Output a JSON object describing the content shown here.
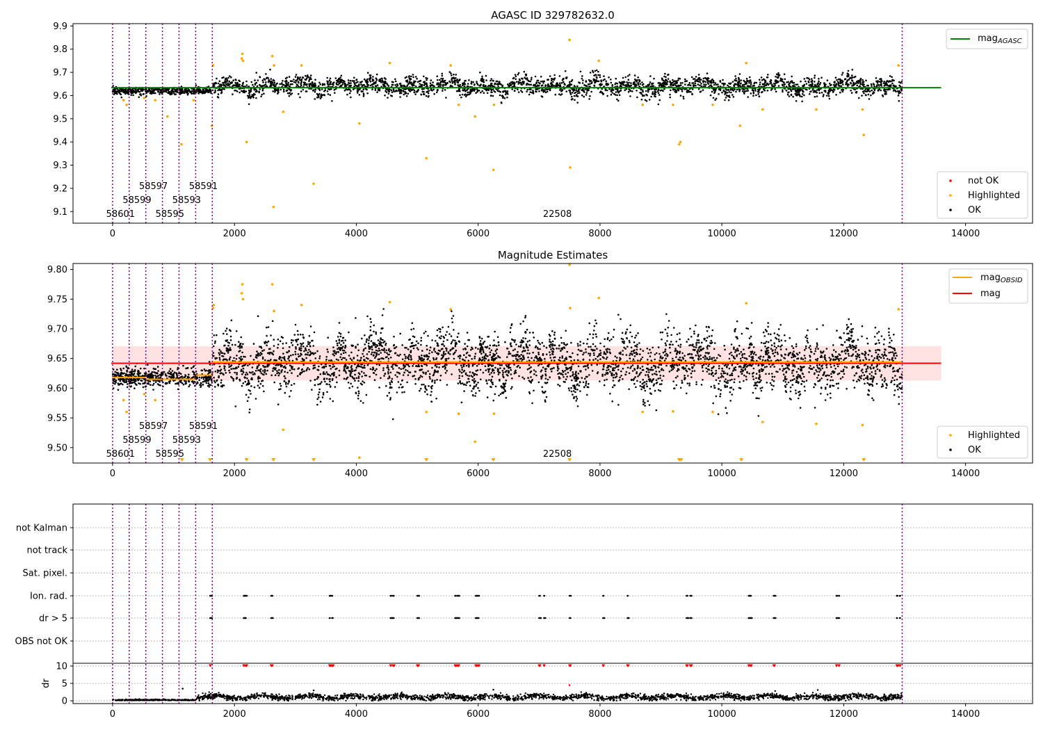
{
  "chart_data": [
    {
      "type": "scatter",
      "title": "AGASC ID 329782632.0",
      "xlim": [
        -650,
        15100
      ],
      "ylim": [
        9.05,
        9.91
      ],
      "xticks": [
        0,
        2000,
        4000,
        6000,
        8000,
        10000,
        12000,
        14000
      ],
      "xtick_labels": [
        "0",
        "2000",
        "4000",
        "6000",
        "8000",
        "10000",
        "12000",
        "14000"
      ],
      "yticks": [
        9.1,
        9.2,
        9.3,
        9.4,
        9.5,
        9.6,
        9.7,
        9.8,
        9.9
      ],
      "ytick_labels": [
        "9.1",
        "9.2",
        "9.3",
        "9.4",
        "9.5",
        "9.6",
        "9.7",
        "9.8",
        "9.9"
      ],
      "reference_line": {
        "name_main": "mag",
        "name_sub": "AGASC",
        "value": 9.634,
        "x_range": [
          0,
          13600
        ],
        "color": "#008000"
      },
      "legend_top": "top-right",
      "legend_bottom": {
        "placement": "bottom-right",
        "entries": [
          {
            "label": "not OK",
            "color": "#ff0000"
          },
          {
            "label": "Highlighted",
            "color": "#ffa500"
          },
          {
            "label": "OK",
            "color": "#000000"
          }
        ]
      },
      "obsid_boundaries": [
        0,
        272,
        545,
        818,
        1090,
        1363,
        1636,
        12960
      ],
      "obsid_labels": [
        {
          "label": "58601",
          "x": 130,
          "level": 0
        },
        {
          "label": "58599",
          "x": 400,
          "level": 1
        },
        {
          "label": "58597",
          "x": 670,
          "level": 2
        },
        {
          "label": "58595",
          "x": 940,
          "level": 0
        },
        {
          "label": "58593",
          "x": 1215,
          "level": 1
        },
        {
          "label": "58591",
          "x": 1490,
          "level": 2
        },
        {
          "label": "22508",
          "x": 7300,
          "level": 0
        }
      ],
      "series": [
        {
          "name": "OK",
          "color": "#000000",
          "description": "dense black points: ~9.62 for x<1636, ~9.64 with variability up to 9.72 for x 1636–12960"
        },
        {
          "name": "Highlighted",
          "color": "#ffa500",
          "points": [
            [
              180,
              9.58
            ],
            [
              230,
              9.56
            ],
            [
              520,
              9.59
            ],
            [
              700,
              9.58
            ],
            [
              900,
              9.51
            ],
            [
              1130,
              9.39
            ],
            [
              1330,
              9.58
            ],
            [
              1630,
              9.47
            ],
            [
              1650,
              9.73
            ],
            [
              2120,
              9.76
            ],
            [
              2130,
              9.78
            ],
            [
              2140,
              9.75
            ],
            [
              2200,
              9.4
            ],
            [
              2620,
              9.77
            ],
            [
              2640,
              9.12
            ],
            [
              2650,
              9.73
            ],
            [
              2800,
              9.53
            ],
            [
              3100,
              9.73
            ],
            [
              3300,
              9.22
            ],
            [
              4050,
              9.48
            ],
            [
              4550,
              9.74
            ],
            [
              5150,
              9.33
            ],
            [
              5550,
              9.73
            ],
            [
              5680,
              9.56
            ],
            [
              5950,
              9.51
            ],
            [
              6250,
              9.28
            ],
            [
              6260,
              9.56
            ],
            [
              7500,
              9.84
            ],
            [
              7510,
              9.29
            ],
            [
              7980,
              9.75
            ],
            [
              8700,
              9.56
            ],
            [
              9200,
              9.56
            ],
            [
              9300,
              9.39
            ],
            [
              9320,
              9.4
            ],
            [
              9850,
              9.56
            ],
            [
              10300,
              9.47
            ],
            [
              10400,
              9.74
            ],
            [
              10670,
              9.54
            ],
            [
              11550,
              9.54
            ],
            [
              12310,
              9.54
            ],
            [
              12330,
              9.43
            ],
            [
              12900,
              9.73
            ]
          ]
        }
      ]
    },
    {
      "type": "scatter",
      "title": "Magnitude Estimates",
      "xlim": [
        -650,
        15100
      ],
      "ylim": [
        9.474,
        9.81
      ],
      "xticks": [
        0,
        2000,
        4000,
        6000,
        8000,
        10000,
        12000,
        14000
      ],
      "xtick_labels": [
        "0",
        "2000",
        "4000",
        "6000",
        "8000",
        "10000",
        "12000",
        "14000"
      ],
      "yticks": [
        9.5,
        9.55,
        9.6,
        9.65,
        9.7,
        9.75,
        9.8
      ],
      "ytick_labels": [
        "9.50",
        "9.55",
        "9.60",
        "9.65",
        "9.70",
        "9.75",
        "9.80"
      ],
      "band": {
        "low": 9.613,
        "high": 9.671,
        "x_range": [
          0,
          13600
        ],
        "color": "#ffcccc"
      },
      "mag_line": {
        "name": "mag",
        "value": 9.642,
        "x_range": [
          0,
          13600
        ],
        "color": "#ff0000"
      },
      "mag_obsid": {
        "name_main": "mag",
        "name_sub": "OBSID",
        "color": "#ffa500",
        "segments": [
          [
            0,
            272,
            9.618
          ],
          [
            272,
            545,
            9.618
          ],
          [
            545,
            818,
            9.615
          ],
          [
            818,
            1090,
            9.615
          ],
          [
            1090,
            1363,
            9.615
          ],
          [
            1363,
            1636,
            9.622
          ],
          [
            1636,
            12960,
            9.644
          ]
        ]
      },
      "legend_top": "top-right",
      "legend_bottom": {
        "placement": "bottom-right",
        "entries": [
          {
            "label": "Highlighted",
            "color": "#ffa500"
          },
          {
            "label": "OK",
            "color": "#000000"
          }
        ]
      },
      "obsid_boundaries": [
        0,
        272,
        545,
        818,
        1090,
        1363,
        1636,
        12960
      ],
      "obsid_labels": [
        {
          "label": "58601",
          "x": 130,
          "level": 0
        },
        {
          "label": "58599",
          "x": 400,
          "level": 1
        },
        {
          "label": "58597",
          "x": 670,
          "level": 2
        },
        {
          "label": "58595",
          "x": 940,
          "level": 0
        },
        {
          "label": "58593",
          "x": 1215,
          "level": 1
        },
        {
          "label": "58591",
          "x": 1490,
          "level": 2
        },
        {
          "label": "22508",
          "x": 7300,
          "level": 0
        }
      ],
      "clipped_low_markers_x": [
        1140,
        1600,
        2200,
        2640,
        3300,
        5150,
        6250,
        7500,
        9300,
        9330,
        10320,
        12330
      ],
      "series": [
        {
          "name": "OK",
          "color": "#000000",
          "description": "dense black points: ~9.62 for x<1636, ~9.64 ±0.06 for x 1636–12960"
        },
        {
          "name": "Highlighted",
          "color": "#ffa500",
          "points": [
            [
              180,
              9.58
            ],
            [
              230,
              9.56
            ],
            [
              520,
              9.59
            ],
            [
              700,
              9.58
            ],
            [
              1650,
              9.735
            ],
            [
              1660,
              9.74
            ],
            [
              2120,
              9.76
            ],
            [
              2130,
              9.775
            ],
            [
              2140,
              9.75
            ],
            [
              2620,
              9.775
            ],
            [
              2650,
              9.73
            ],
            [
              2800,
              9.53
            ],
            [
              3100,
              9.74
            ],
            [
              4050,
              9.483
            ],
            [
              4550,
              9.745
            ],
            [
              5150,
              9.56
            ],
            [
              5550,
              9.733
            ],
            [
              5680,
              9.557
            ],
            [
              5950,
              9.51
            ],
            [
              6260,
              9.557
            ],
            [
              7500,
              9.808
            ],
            [
              7510,
              9.735
            ],
            [
              7980,
              9.752
            ],
            [
              8700,
              9.56
            ],
            [
              9200,
              9.561
            ],
            [
              9850,
              9.56
            ],
            [
              10400,
              9.743
            ],
            [
              10670,
              9.543
            ],
            [
              11550,
              9.54
            ],
            [
              12310,
              9.538
            ],
            [
              12900,
              9.733
            ]
          ]
        }
      ]
    },
    {
      "type": "scatter",
      "title": "",
      "xlim": [
        -650,
        15100
      ],
      "xticks": [
        0,
        2000,
        4000,
        6000,
        8000,
        10000,
        12000,
        14000
      ],
      "xtick_labels": [
        "0",
        "2000",
        "4000",
        "6000",
        "8000",
        "10000",
        "12000",
        "14000"
      ],
      "flag_categories": [
        "not Kalman",
        "not track",
        "Sat. pixel.",
        "Ion. rad.",
        "dr > 5",
        "OBS not OK"
      ],
      "flag_x_clusters": [
        1600,
        2150,
        2180,
        2600,
        3560,
        3600,
        4560,
        4600,
        5000,
        5620,
        5660,
        5960,
        6000,
        7000,
        7080,
        7500,
        8050,
        8450,
        9420,
        9480,
        10440,
        10470,
        10850,
        11880,
        11920,
        12870,
        12920
      ],
      "flag_rows": [
        "Ion. rad.",
        "dr > 5"
      ],
      "dr_panel": {
        "ylabel": "dr",
        "yticks": [
          0,
          5,
          10
        ],
        "ytick_labels": [
          "0",
          "5",
          "10"
        ],
        "ylim": [
          -0.8,
          10.8
        ],
        "description": "black dr points ~0 for x<1363, ~1–2 for x 1363–12960; red clipped markers at 10 at flag clusters",
        "outliers": [
          [
            1150,
            3.5
          ],
          [
            3300,
            3.0
          ],
          [
            6250,
            3.2
          ],
          [
            7500,
            4.5
          ]
        ]
      },
      "obsid_boundaries": [
        0,
        272,
        545,
        818,
        1090,
        1363,
        1636,
        12960
      ]
    }
  ]
}
